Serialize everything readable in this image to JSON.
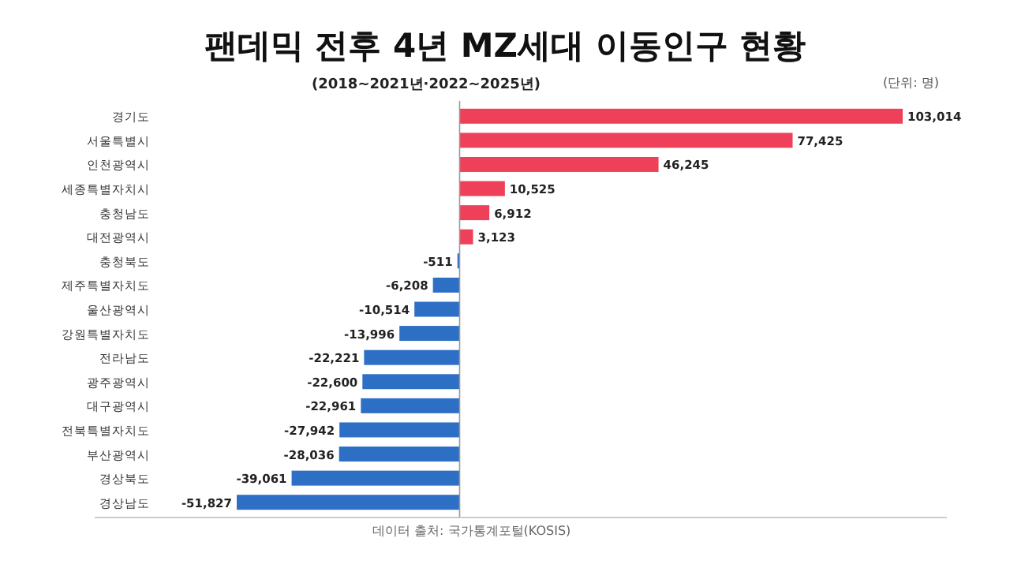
{
  "chart_data": {
    "type": "bar",
    "orientation": "horizontal",
    "title": "팬데믹 전후 4년 MZ세대 이동인구 현황",
    "subtitle": "(2018~2021년·2022~2025년)",
    "annotations": [
      "(단위: 명)",
      "데이터 출처: 국가통계포털(KOSIS)"
    ],
    "categories": [
      "경기도",
      "서울특별시",
      "인천광역시",
      "세종특별자치시",
      "충청남도",
      "대전광역시",
      "충청북도",
      "제주특별자치도",
      "울산광역시",
      "강원특별자치도",
      "전라남도",
      "광주광역시",
      "대구광역시",
      "전북특별자치도",
      "부산광역시",
      "경상북도",
      "경상남도"
    ],
    "values": [
      103014,
      77425,
      46245,
      10525,
      6912,
      3123,
      -511,
      -6208,
      -10514,
      -13996,
      -22221,
      -22600,
      -22961,
      -27942,
      -28036,
      -39061,
      -51827
    ],
    "value_labels": [
      "103,014",
      "77,425",
      "46,245",
      "10,525",
      "6,912",
      "3,123",
      "-511",
      "-6,208",
      "-10,514",
      "-13,996",
      "-22,221",
      "-22,600",
      "-22,961",
      "-27,942",
      "-28,036",
      "-39,061",
      "-51,827"
    ],
    "colors": [
      "#ee4059",
      "#ee4059",
      "#ee4059",
      "#ee4059",
      "#ee4059",
      "#ee4059",
      "#2d6fc4",
      "#2d6fc4",
      "#2d6fc4",
      "#2d6fc4",
      "#2d6fc4",
      "#2d6fc4",
      "#2d6fc4",
      "#2d6fc4",
      "#2d6fc4",
      "#2d6fc4",
      "#2d6fc4"
    ]
  }
}
